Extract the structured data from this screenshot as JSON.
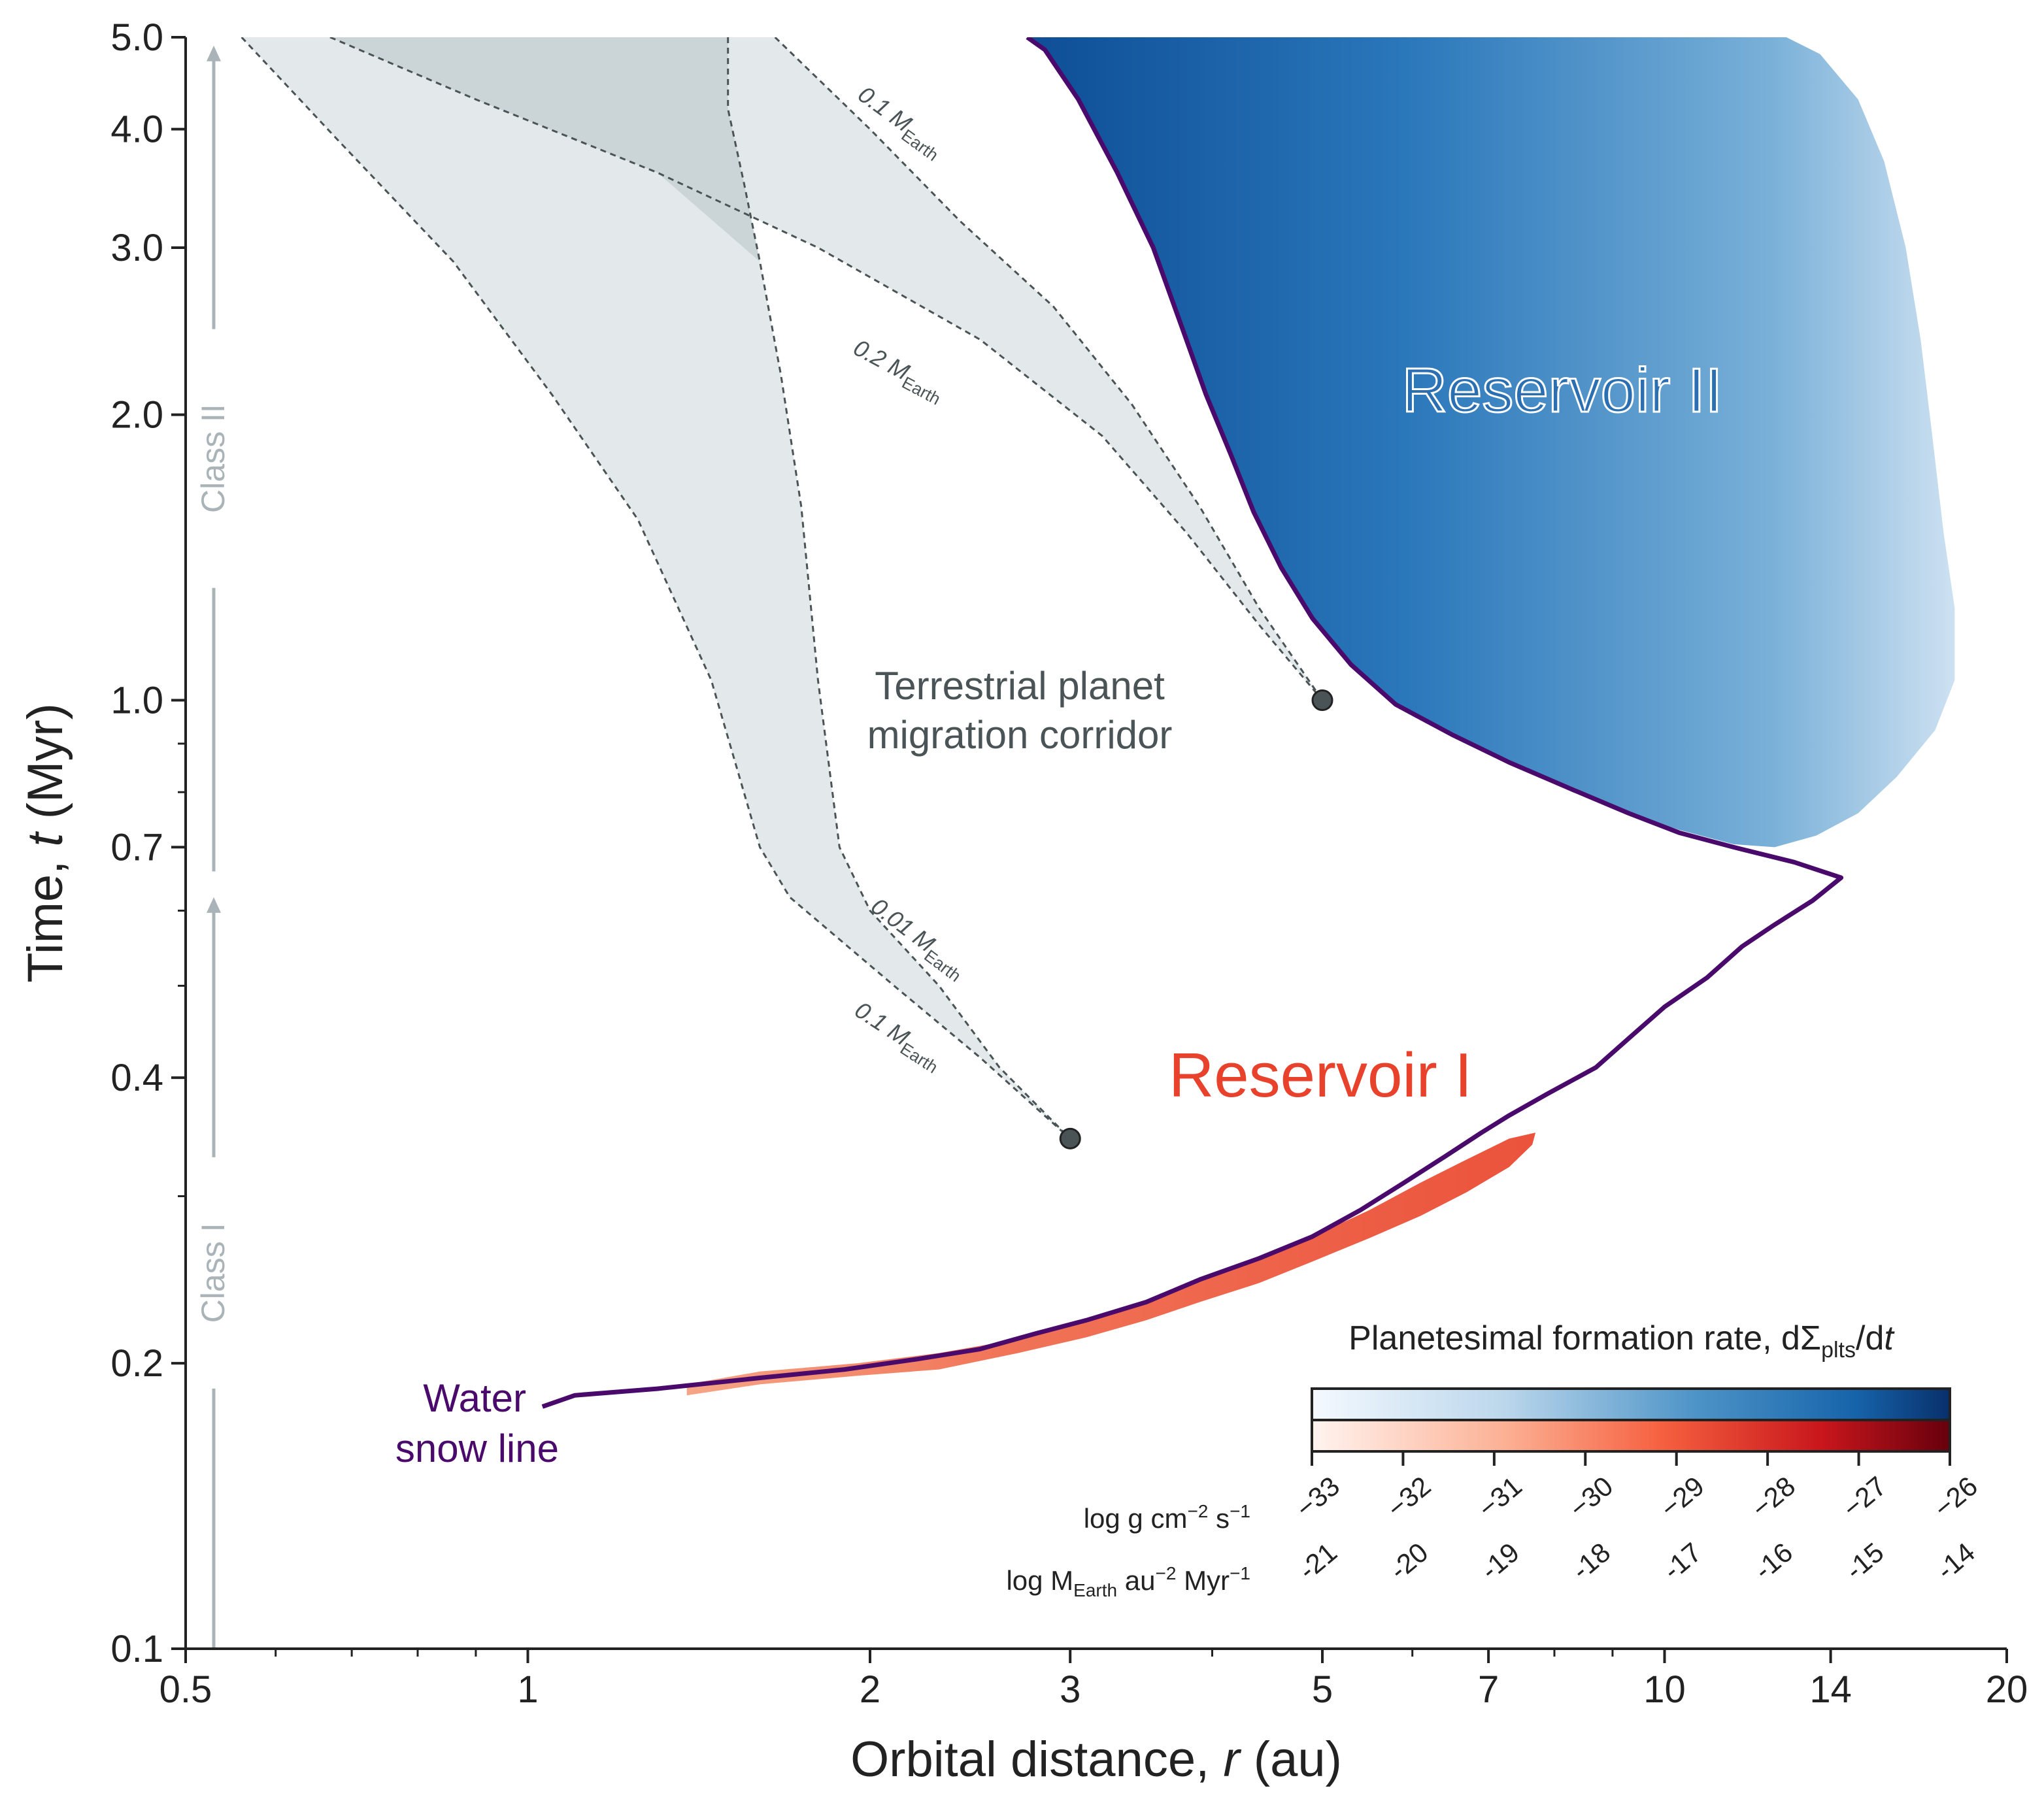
{
  "chart_data": {
    "type": "line",
    "xscale": "log",
    "yscale": "log",
    "xlim": [
      0.5,
      20
    ],
    "ylim": [
      0.1,
      5.0
    ],
    "xlabel_main": "Orbital distance, ",
    "xlabel_var": "r",
    "xlabel_unit": " (au)",
    "ylabel_main": "Time, ",
    "ylabel_var": "t",
    "ylabel_unit": " (Myr)",
    "xticks": [
      {
        "v": 0.5,
        "label": "0.5"
      },
      {
        "v": 1,
        "label": "1"
      },
      {
        "v": 2,
        "label": "2"
      },
      {
        "v": 3,
        "label": "3"
      },
      {
        "v": 5,
        "label": "5"
      },
      {
        "v": 7,
        "label": "7"
      },
      {
        "v": 10,
        "label": "10"
      },
      {
        "v": 14,
        "label": "14"
      },
      {
        "v": 20,
        "label": "20"
      }
    ],
    "xminor": [
      0.6,
      0.7,
      0.8,
      0.9,
      4,
      6,
      8,
      9
    ],
    "yticks": [
      {
        "v": 0.1,
        "label": "0.1"
      },
      {
        "v": 0.2,
        "label": "0.2"
      },
      {
        "v": 0.4,
        "label": "0.4"
      },
      {
        "v": 0.7,
        "label": "0.7"
      },
      {
        "v": 1.0,
        "label": "1.0"
      },
      {
        "v": 2.0,
        "label": "2.0"
      },
      {
        "v": 3.0,
        "label": "3.0"
      },
      {
        "v": 4.0,
        "label": "4.0"
      },
      {
        "v": 5.0,
        "label": "5.0"
      }
    ],
    "yminor": [
      0.3,
      0.5,
      0.6,
      0.8,
      0.9
    ],
    "snow_line": {
      "label_line1": "Water",
      "label_line2": "snow line",
      "color": "#4a0a6b",
      "points": [
        [
          1.03,
          0.18
        ],
        [
          1.1,
          0.185
        ],
        [
          1.3,
          0.188
        ],
        [
          1.6,
          0.193
        ],
        [
          1.9,
          0.197
        ],
        [
          2.2,
          0.202
        ],
        [
          2.5,
          0.207
        ],
        [
          2.8,
          0.215
        ],
        [
          3.1,
          0.222
        ],
        [
          3.5,
          0.232
        ],
        [
          3.9,
          0.245
        ],
        [
          4.4,
          0.258
        ],
        [
          4.9,
          0.272
        ],
        [
          5.4,
          0.29
        ],
        [
          5.9,
          0.31
        ],
        [
          6.4,
          0.33
        ],
        [
          6.9,
          0.35
        ],
        [
          7.3,
          0.365
        ],
        [
          7.9,
          0.385
        ],
        [
          8.7,
          0.41
        ],
        [
          9.3,
          0.44
        ],
        [
          10.0,
          0.475
        ],
        [
          10.9,
          0.51
        ],
        [
          11.7,
          0.55
        ],
        [
          12.5,
          0.58
        ],
        [
          13.5,
          0.615
        ],
        [
          14.3,
          0.65
        ],
        [
          13.0,
          0.675
        ],
        [
          11.5,
          0.7
        ],
        [
          10.3,
          0.725
        ],
        [
          9.3,
          0.76
        ],
        [
          8.3,
          0.805
        ],
        [
          7.3,
          0.86
        ],
        [
          6.5,
          0.92
        ],
        [
          5.8,
          0.99
        ],
        [
          5.3,
          1.09
        ],
        [
          4.9,
          1.22
        ],
        [
          4.6,
          1.38
        ],
        [
          4.35,
          1.58
        ],
        [
          4.15,
          1.82
        ],
        [
          3.95,
          2.1
        ],
        [
          3.75,
          2.5
        ],
        [
          3.55,
          3.0
        ],
        [
          3.3,
          3.6
        ],
        [
          3.05,
          4.3
        ],
        [
          2.85,
          4.85
        ],
        [
          2.75,
          5.0
        ]
      ]
    },
    "reservoir_1": {
      "label": "Reservoir I",
      "color": "#e8412c",
      "colorscale": "Reds",
      "lower_edge": [
        [
          1.38,
          0.185
        ],
        [
          1.6,
          0.19
        ],
        [
          1.95,
          0.194
        ],
        [
          2.3,
          0.197
        ],
        [
          2.7,
          0.205
        ],
        [
          3.1,
          0.213
        ],
        [
          3.5,
          0.222
        ],
        [
          3.9,
          0.232
        ],
        [
          4.4,
          0.243
        ],
        [
          4.9,
          0.256
        ],
        [
          5.5,
          0.271
        ],
        [
          6.1,
          0.286
        ],
        [
          6.7,
          0.303
        ],
        [
          7.3,
          0.322
        ],
        [
          7.65,
          0.34
        ]
      ],
      "upper_edge": [
        [
          7.7,
          0.35
        ],
        [
          7.3,
          0.345
        ],
        [
          6.7,
          0.328
        ],
        [
          6.1,
          0.31
        ],
        [
          5.5,
          0.29
        ],
        [
          4.9,
          0.272
        ],
        [
          4.4,
          0.258
        ],
        [
          3.9,
          0.245
        ],
        [
          3.5,
          0.232
        ],
        [
          3.1,
          0.222
        ],
        [
          2.7,
          0.212
        ],
        [
          2.3,
          0.205
        ],
        [
          1.95,
          0.2
        ],
        [
          1.6,
          0.196
        ],
        [
          1.38,
          0.19
        ]
      ]
    },
    "reservoir_2": {
      "label": "Reservoir II",
      "color": "#2166ac",
      "colorscale": "Blues",
      "boundary": [
        [
          2.75,
          5.0
        ],
        [
          2.85,
          4.85
        ],
        [
          3.05,
          4.3
        ],
        [
          3.3,
          3.6
        ],
        [
          3.55,
          3.0
        ],
        [
          3.75,
          2.5
        ],
        [
          3.95,
          2.1
        ],
        [
          4.15,
          1.82
        ],
        [
          4.35,
          1.58
        ],
        [
          4.6,
          1.38
        ],
        [
          4.9,
          1.22
        ],
        [
          5.3,
          1.09
        ],
        [
          5.8,
          0.99
        ],
        [
          6.5,
          0.92
        ],
        [
          7.3,
          0.86
        ],
        [
          8.3,
          0.8
        ],
        [
          9.3,
          0.76
        ],
        [
          10.3,
          0.73
        ],
        [
          11.5,
          0.705
        ],
        [
          12.5,
          0.7
        ],
        [
          13.6,
          0.72
        ],
        [
          14.8,
          0.76
        ],
        [
          16.0,
          0.83
        ],
        [
          17.3,
          0.93
        ],
        [
          18.0,
          1.05
        ],
        [
          18.0,
          1.25
        ],
        [
          17.6,
          1.5
        ],
        [
          17.2,
          1.9
        ],
        [
          16.8,
          2.4
        ],
        [
          16.3,
          3.0
        ],
        [
          15.6,
          3.7
        ],
        [
          14.8,
          4.3
        ],
        [
          13.7,
          4.8
        ],
        [
          12.8,
          5.0
        ]
      ]
    },
    "migration_corridor": {
      "label_line1": "Terrestrial planet",
      "label_line2": "migration corridor",
      "color": "#4a5457",
      "endpoints": [
        {
          "x": 3.0,
          "y": 0.345
        },
        {
          "x": 5.0,
          "y": 1.0
        }
      ],
      "lines": [
        {
          "label": "0.1 M",
          "sub": "Earth",
          "points": [
            [
              1.5,
              5.0
            ],
            [
              1.5,
              4.2
            ],
            [
              1.55,
              3.5
            ],
            [
              1.6,
              2.9
            ],
            [
              1.67,
              2.2
            ],
            [
              1.74,
              1.6
            ],
            [
              1.8,
              1.05
            ],
            [
              1.88,
              0.7
            ],
            [
              2.0,
              0.6
            ],
            [
              2.3,
              0.5
            ],
            [
              2.6,
              0.41
            ],
            [
              3.0,
              0.345
            ]
          ]
        },
        {
          "label": "0.01 M",
          "sub": "Earth",
          "points": [
            [
              0.56,
              5.0
            ],
            [
              0.68,
              3.9
            ],
            [
              0.86,
              2.9
            ],
            [
              1.05,
              2.1
            ],
            [
              1.25,
              1.55
            ],
            [
              1.45,
              1.05
            ],
            [
              1.6,
              0.7
            ],
            [
              1.7,
              0.62
            ],
            [
              2.1,
              0.5
            ],
            [
              2.5,
              0.42
            ],
            [
              3.0,
              0.345
            ]
          ]
        },
        {
          "label": "0.1 M",
          "sub": "Earth",
          "points": [
            [
              1.65,
              5.0
            ],
            [
              2.0,
              4.0
            ],
            [
              2.4,
              3.2
            ],
            [
              2.9,
              2.6
            ],
            [
              3.4,
              2.05
            ],
            [
              3.9,
              1.6
            ],
            [
              4.4,
              1.25
            ],
            [
              5.0,
              1.0
            ]
          ]
        },
        {
          "label": "0.2 M",
          "sub": "Earth",
          "points": [
            [
              0.67,
              5.0
            ],
            [
              0.9,
              4.3
            ],
            [
              1.3,
              3.6
            ],
            [
              1.8,
              3.0
            ],
            [
              2.5,
              2.4
            ],
            [
              3.2,
              1.9
            ],
            [
              3.8,
              1.5
            ],
            [
              4.4,
              1.2
            ],
            [
              5.0,
              1.0
            ]
          ]
        }
      ]
    },
    "class_arrows": [
      {
        "label": "Class I",
        "from": 0.1,
        "to": 0.62
      },
      {
        "label": "Class II",
        "from": 0.66,
        "to": 4.9
      }
    ],
    "colorbar": {
      "title_main": "Planetesimal formation rate, dΣ",
      "title_sub": "plts",
      "title_tail": "/d",
      "title_var": "t",
      "row1_label_main": "log g cm",
      "row1_label_sup1": "−2",
      "row1_label_mid": " s",
      "row1_label_sup2": "−1",
      "row2_label_main": "log M",
      "row2_label_sub": "Earth",
      "row2_label_mid": " au",
      "row2_label_sup1": "−2",
      "row2_label_tail": " Myr",
      "row2_label_sup2": "−1",
      "ticks_cgs": [
        "−33",
        "−32",
        "−31",
        "−30",
        "−29",
        "−28",
        "−27",
        "−26"
      ],
      "ticks_earth": [
        "-21",
        "-20",
        "-19",
        "-18",
        "-17",
        "-16",
        "-15",
        "-14"
      ]
    },
    "colors": {
      "axis": "#222222",
      "class_arrow": "#aab4b8",
      "corridor_fill": "#e3e9ea",
      "corridor_overlap": "#cbd5d8",
      "corridor_line": "#4a5457",
      "snow_line": "#4a0a6b",
      "res1_text": "#e8412c",
      "res2_text": "#2b6fb3"
    }
  }
}
